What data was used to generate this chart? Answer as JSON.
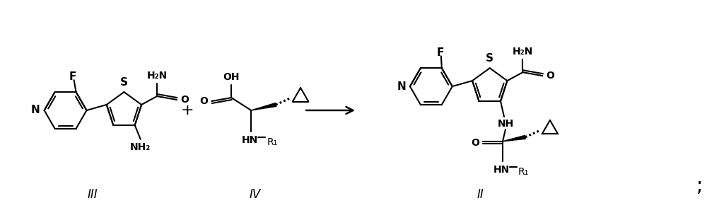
{
  "background_color": "#ffffff",
  "line_color": "#000000",
  "text_color": "#000000",
  "fig_width": 10.0,
  "fig_height": 2.94,
  "dpi": 100,
  "label_III": "III",
  "label_IV": "IV",
  "label_II": "II",
  "plus_sign": "+",
  "semicolon": ";",
  "font_size_atoms": 10,
  "font_size_roman": 12,
  "lw": 1.5
}
